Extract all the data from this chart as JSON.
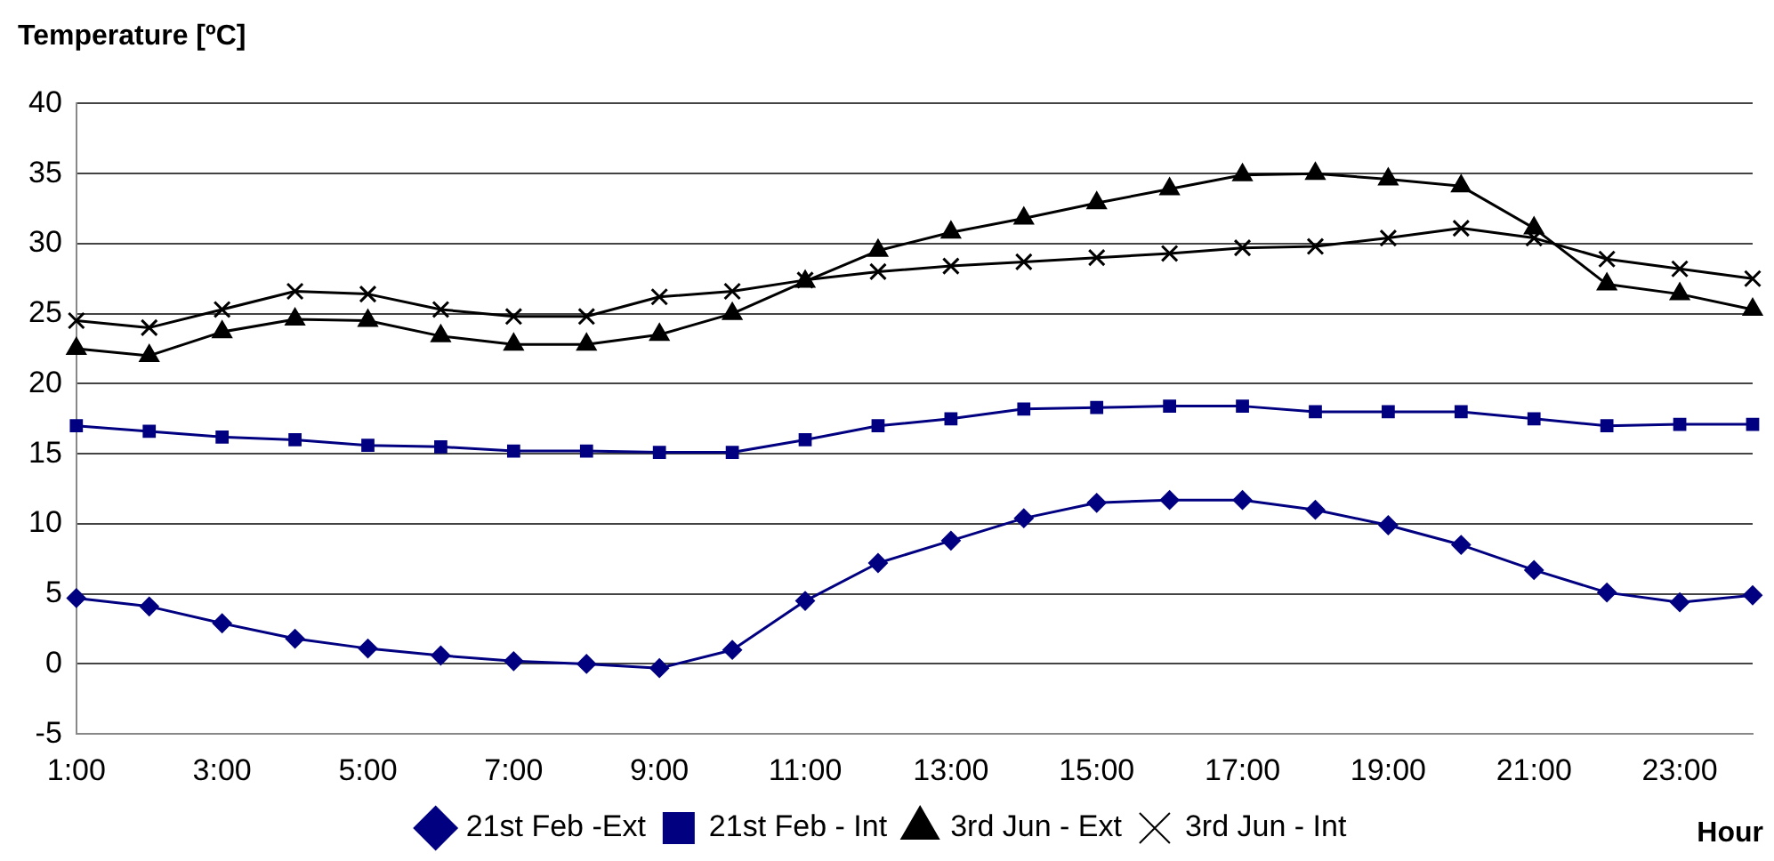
{
  "chart_data": {
    "type": "line",
    "ylabel": "Temperature [ºC]",
    "xlabel": "Hour",
    "categories": [
      "1:00",
      null,
      "3:00",
      null,
      "5:00",
      null,
      "7:00",
      null,
      "9:00",
      null,
      "11:00",
      null,
      "13:00",
      null,
      "15:00",
      null,
      "17:00",
      null,
      "19:00",
      null,
      "21:00",
      null,
      "23:00",
      null
    ],
    "ylim": [
      -5,
      40
    ],
    "yticks": [
      -5,
      0,
      5,
      10,
      15,
      20,
      25,
      30,
      35,
      40
    ],
    "grid": "y",
    "legend": "bottom",
    "series": [
      {
        "name": "21st Feb -Ext",
        "color": "#000080",
        "marker": "diamond",
        "values": [
          4.7,
          4.1,
          2.9,
          1.8,
          1.1,
          0.6,
          0.2,
          0,
          -0.3,
          1,
          4.5,
          7.2,
          8.8,
          10.4,
          11.5,
          11.7,
          11.7,
          11,
          9.9,
          8.5,
          6.7,
          5.1,
          4.4,
          4.9
        ]
      },
      {
        "name": "21st Feb - Int",
        "color": "#000080",
        "marker": "square",
        "values": [
          17,
          16.6,
          16.2,
          16,
          15.6,
          15.5,
          15.2,
          15.2,
          15.1,
          15.1,
          16,
          17,
          17.5,
          18.2,
          18.3,
          18.4,
          18.4,
          18,
          18,
          18,
          17.5,
          17,
          17.1,
          17.1
        ]
      },
      {
        "name": "3rd Jun - Ext",
        "color": "#000000",
        "marker": "triangle",
        "values": [
          22.5,
          22,
          23.7,
          24.6,
          24.5,
          23.4,
          22.8,
          22.8,
          23.5,
          25,
          27.3,
          29.5,
          30.8,
          31.8,
          32.9,
          33.9,
          34.9,
          35,
          34.6,
          34.1,
          31.1,
          27.1,
          26.4,
          25.3
        ]
      },
      {
        "name": "3rd Jun - Int",
        "color": "#000000",
        "marker": "cross",
        "values": [
          24.5,
          24,
          25.3,
          26.6,
          26.4,
          25.3,
          24.8,
          24.8,
          26.2,
          26.6,
          27.4,
          28,
          28.4,
          28.7,
          29,
          29.3,
          29.7,
          29.8,
          30.4,
          31.1,
          30.4,
          28.9,
          28.2,
          27.5
        ]
      }
    ]
  }
}
